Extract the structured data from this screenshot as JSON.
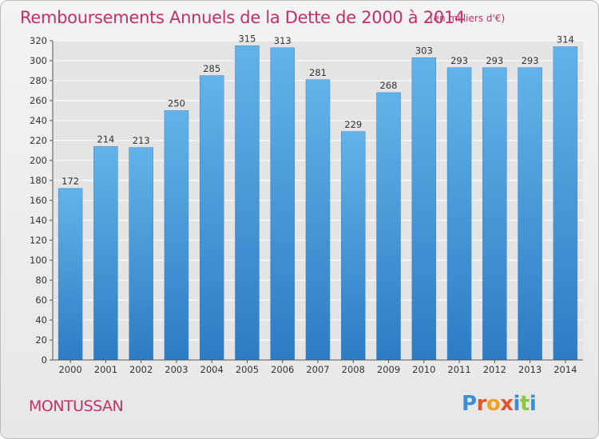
{
  "header": {
    "title": "Remboursements Annuels de la Dette de 2000 à 2014",
    "subtitle": "(en milliers d'€)"
  },
  "footer": {
    "commune": "MONTUSSAN",
    "logo": "Proxiti"
  },
  "colors": {
    "bar_top": "#63b3ea",
    "bar_bottom": "#2d7cc3",
    "title": "#c0306b",
    "grid": "#ffffff",
    "logo_letters": [
      "#3a8fd6",
      "#e2542a",
      "#f4a21c",
      "#e2542a",
      "#3a8fd6",
      "#8dc63f",
      "#3a8fd6"
    ]
  },
  "chart_data": {
    "type": "bar",
    "title": "Remboursements Annuels de la Dette de 2000 à 2014",
    "subtitle": "(en milliers d'€)",
    "xlabel": "",
    "ylabel": "",
    "categories": [
      "2000",
      "2001",
      "2002",
      "2003",
      "2004",
      "2005",
      "2006",
      "2007",
      "2008",
      "2009",
      "2010",
      "2011",
      "2012",
      "2013",
      "2014"
    ],
    "values": [
      172,
      214,
      213,
      250,
      285,
      315,
      313,
      281,
      229,
      268,
      303,
      293,
      293,
      293,
      314
    ],
    "ylim": [
      0,
      320
    ],
    "yticks": [
      0,
      20,
      40,
      60,
      80,
      100,
      120,
      140,
      160,
      180,
      200,
      220,
      240,
      260,
      280,
      300,
      320
    ],
    "grid": true,
    "legend": "none"
  }
}
